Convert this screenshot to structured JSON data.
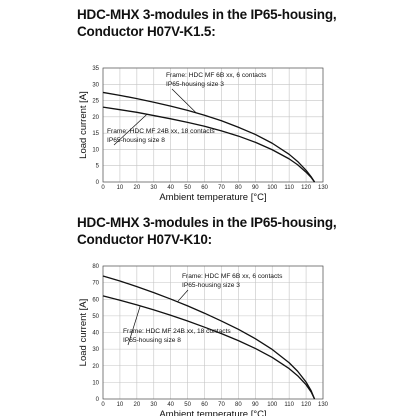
{
  "chart_data": [
    {
      "type": "line",
      "title_line1": "HDC-MHX 3-modules in the IP65-housing,",
      "title_line2": "Conductor H07V-K1.5:",
      "xlabel": "Ambient temperature [°C]",
      "ylabel": "Load current [A]",
      "xlim": [
        0,
        130
      ],
      "ylim": [
        0,
        35
      ],
      "xticks": [
        0,
        10,
        20,
        30,
        40,
        50,
        60,
        70,
        80,
        90,
        100,
        110,
        120,
        130
      ],
      "yticks": [
        0,
        5,
        10,
        15,
        20,
        25,
        30,
        35
      ],
      "grid": true,
      "series": [
        {
          "name": "Frame: HDC MF 6B xx, 6 contacts / IP65-housing size 3",
          "x": [
            0,
            10,
            20,
            30,
            40,
            50,
            60,
            70,
            80,
            90,
            100,
            110,
            115,
            120,
            123,
            125
          ],
          "y": [
            27.5,
            26.6,
            25.6,
            24.5,
            23.3,
            22.0,
            20.5,
            18.8,
            16.8,
            14.6,
            11.9,
            8.5,
            6.3,
            3.6,
            1.6,
            0
          ]
        },
        {
          "name": "Frame: HDC MF 24B xx, 18 contacts / IP65-housing size 8",
          "x": [
            0,
            10,
            20,
            30,
            40,
            50,
            60,
            70,
            80,
            90,
            100,
            110,
            115,
            120,
            123,
            125
          ],
          "y": [
            23.0,
            22.2,
            21.4,
            20.4,
            19.4,
            18.3,
            17.1,
            15.7,
            14.1,
            12.2,
            9.9,
            7.1,
            5.3,
            3.0,
            1.4,
            0
          ]
        }
      ],
      "annotations": [
        {
          "lines": [
            "Frame: HDC MF 6B xx, 6 contacts",
            "IP65-housing size 3"
          ],
          "series": 0
        },
        {
          "lines": [
            "Frame: HDC MF 24B xx, 18 contacts",
            "IP65-housing size 8"
          ],
          "series": 1
        }
      ]
    },
    {
      "type": "line",
      "title_line1": "HDC-MHX 3-modules in the IP65-housing,",
      "title_line2": "Conductor H07V-K10:",
      "xlabel": "Ambient temperature [°C]",
      "ylabel": "Load current [A]",
      "xlim": [
        0,
        130
      ],
      "ylim": [
        0,
        80
      ],
      "xticks": [
        0,
        10,
        20,
        30,
        40,
        50,
        60,
        70,
        80,
        90,
        100,
        110,
        120,
        130
      ],
      "yticks": [
        0,
        10,
        20,
        30,
        40,
        50,
        60,
        70,
        80
      ],
      "grid": true,
      "series": [
        {
          "name": "Frame: HDC MF 6B xx, 6 contacts / IP65-housing size 3",
          "x": [
            0,
            10,
            20,
            30,
            40,
            50,
            60,
            70,
            80,
            90,
            100,
            110,
            115,
            120,
            123,
            125
          ],
          "y": [
            74.0,
            71.0,
            67.6,
            64.0,
            60.1,
            56.0,
            51.6,
            46.9,
            41.9,
            36.3,
            29.8,
            21.8,
            16.7,
            10.2,
            5.0,
            0
          ]
        },
        {
          "name": "Frame: HDC MF 24B xx, 18 contacts / IP65-housing size 8",
          "x": [
            0,
            10,
            20,
            30,
            40,
            50,
            60,
            70,
            80,
            90,
            100,
            110,
            115,
            120,
            123,
            125
          ],
          "y": [
            62.0,
            59.4,
            56.6,
            53.6,
            50.4,
            46.9,
            43.2,
            39.3,
            35.1,
            30.4,
            25.0,
            18.3,
            14.0,
            8.6,
            4.2,
            0
          ]
        }
      ],
      "annotations": [
        {
          "lines": [
            "Frame: HDC MF 6B xx, 6 contacts",
            "IP65-housing size 3"
          ],
          "series": 0
        },
        {
          "lines": [
            "Frame: HDC MF 24B xx, 18 contacts",
            "IP65-housing size 8"
          ],
          "series": 1
        }
      ]
    }
  ]
}
